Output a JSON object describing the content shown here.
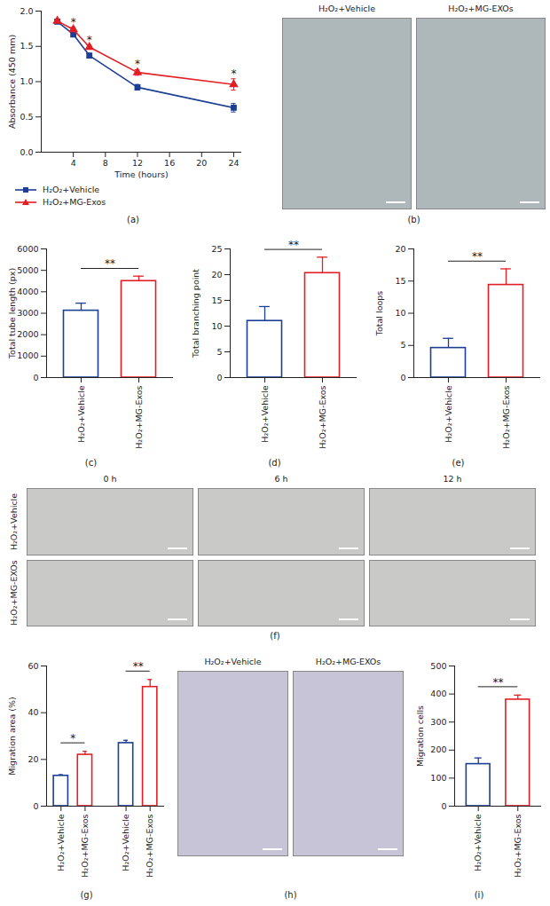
{
  "chart_data": [
    {
      "type": "line",
      "panel_label": "(a)",
      "x_label": "Time (hours)",
      "y_label": "Absorbance (450 mm)",
      "x": [
        2,
        4,
        6,
        12,
        24
      ],
      "xlim": [
        0,
        25
      ],
      "xticks": [
        4,
        8,
        12,
        16,
        20,
        24
      ],
      "ylim": [
        0,
        2
      ],
      "yticks": [
        {
          "value": 0,
          "label": "0.0"
        },
        0.5,
        {
          "value": 1,
          "label": "1.0"
        },
        1.5,
        {
          "value": 2,
          "label": "2.0"
        }
      ],
      "legend": "bottom",
      "series": [
        {
          "name": "H₂O₂+Vehicle",
          "color": "#1c3f94",
          "marker": "square",
          "values": [
            1.85,
            1.67,
            1.37,
            0.92,
            0.63
          ],
          "errors": [
            0.02,
            0.03,
            0.03,
            0.04,
            0.06
          ]
        },
        {
          "name": "H₂O₂+MG-Exos",
          "color": "#e31e24",
          "marker": "triangle",
          "values": [
            1.86,
            1.74,
            1.49,
            1.13,
            0.96
          ],
          "errors": [
            0.02,
            0.03,
            0.03,
            0.04,
            0.08
          ],
          "annotations": [
            null,
            "*",
            "*",
            "*",
            "*"
          ]
        }
      ]
    },
    {
      "type": "image",
      "panel_label": "(b)",
      "columns": [
        "H₂O₂+Vehicle",
        "H₂O₂+MG-EXOs"
      ]
    },
    {
      "type": "bar",
      "panel_label": "(c)",
      "y_label": "Total tube length (px)",
      "categories": [
        "H₂O₂+Vehicle",
        "H₂O₂+MG-Exos"
      ],
      "values": [
        3120,
        4500
      ],
      "errors": [
        350,
        230
      ],
      "colors": [
        "#1c3f94",
        "#e31e24"
      ],
      "ylim": [
        0,
        6000
      ],
      "yticks": [
        0,
        1000,
        2000,
        3000,
        4000,
        5000,
        6000
      ],
      "comparisons": [
        {
          "between": [
            0,
            1
          ],
          "label": "**"
        }
      ]
    },
    {
      "type": "bar",
      "panel_label": "(d)",
      "y_label": "Total branching point",
      "categories": [
        "H₂O₂+Vehicle",
        "H₂O₂+MG-Exos"
      ],
      "values": [
        11,
        20.3
      ],
      "errors": [
        2.8,
        3.1
      ],
      "colors": [
        "#1c3f94",
        "#e31e24"
      ],
      "ylim": [
        0,
        25
      ],
      "yticks": [
        0,
        5,
        10,
        15,
        20,
        25
      ],
      "comparisons": [
        {
          "between": [
            0,
            1
          ],
          "label": "**"
        }
      ]
    },
    {
      "type": "bar",
      "panel_label": "(e)",
      "y_label": "Total loops",
      "categories": [
        "H₂O₂+Vehicle",
        "H₂O₂+MG-Exos"
      ],
      "values": [
        4.6,
        14.4
      ],
      "errors": [
        1.5,
        2.5
      ],
      "colors": [
        "#1c3f94",
        "#e31e24"
      ],
      "ylim": [
        0,
        20
      ],
      "yticks": [
        0,
        5,
        10,
        15,
        20
      ],
      "comparisons": [
        {
          "between": [
            0,
            1
          ],
          "label": "**"
        }
      ]
    },
    {
      "type": "image",
      "panel_label": "(f)",
      "columns": [
        "0 h",
        "6 h",
        "12 h"
      ],
      "rows": [
        "H₂O₂+Vehicle",
        "H₂O₂+MG-EXOs"
      ]
    },
    {
      "type": "bar",
      "panel_label": "(g)",
      "y_label": "Migration area (%)",
      "categories": [
        "H₂O₂+Vehicle",
        "H₂O₂+MG-Exos",
        "H₂O₂+Vehicle",
        "H₂O₂+MG-Exos"
      ],
      "values": [
        13,
        22,
        27,
        51
      ],
      "errors": [
        0.5,
        1.5,
        1.2,
        3.2
      ],
      "colors": [
        "#1c3f94",
        "#e31e24",
        "#1c3f94",
        "#e31e24"
      ],
      "ylim": [
        0,
        60
      ],
      "yticks": [
        0,
        20,
        40,
        60
      ],
      "comparisons": [
        {
          "between": [
            0,
            1
          ],
          "label": "*"
        },
        {
          "between": [
            2,
            3
          ],
          "label": "**"
        }
      ]
    },
    {
      "type": "image",
      "panel_label": "(h)",
      "columns": [
        "H₂O₂+Vehicle",
        "H₂O₂+MG-EXOs"
      ]
    },
    {
      "type": "bar",
      "panel_label": "(i)",
      "y_label": "Migration cells",
      "categories": [
        "H₂O₂+Vehicle",
        "H₂O₂+MG-Exos"
      ],
      "values": [
        150,
        380
      ],
      "errors": [
        22,
        16
      ],
      "colors": [
        "#1c3f94",
        "#e31e24"
      ],
      "ylim": [
        0,
        500
      ],
      "yticks": [
        0,
        100,
        200,
        300,
        400,
        500
      ],
      "comparisons": [
        {
          "between": [
            0,
            1
          ],
          "label": "**"
        }
      ]
    }
  ]
}
